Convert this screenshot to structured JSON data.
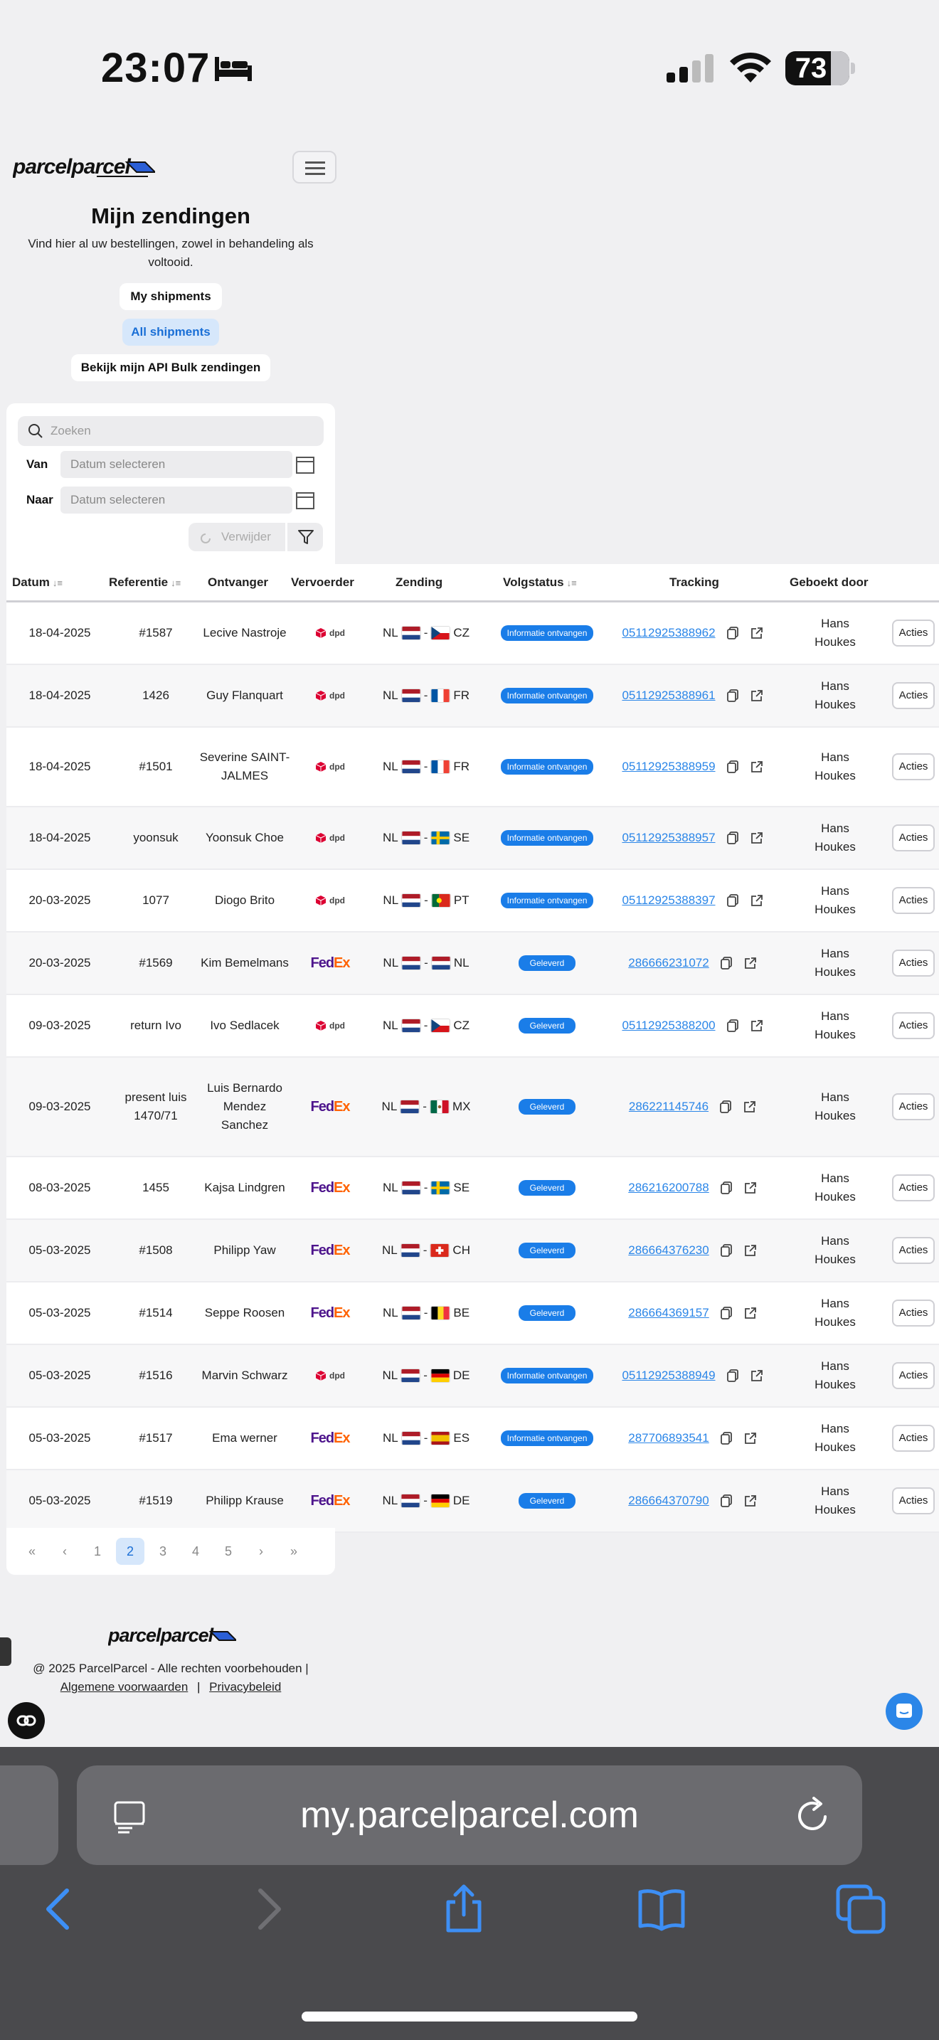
{
  "status_bar": {
    "time": "23:07",
    "battery": "73"
  },
  "brand": {
    "logo": "parcelparcel"
  },
  "header": {
    "title": "Mijn zendingen",
    "subtitle": "Vind hier al uw bestellingen, zowel in behandeling als voltooid."
  },
  "tabs": [
    "My shipments",
    "All shipments",
    "Bekijk mijn API Bulk zendingen"
  ],
  "filters": {
    "search_placeholder": "Zoeken",
    "from_label": "Van",
    "to_label": "Naar",
    "date_placeholder": "Datum selecteren",
    "remove_label": "Verwijder"
  },
  "table": {
    "headers": [
      "Datum",
      "Referentie",
      "Ontvanger",
      "Vervoerder",
      "Zending",
      "Volgstatus",
      "Tracking",
      "Geboekt door"
    ],
    "action_label": "Acties",
    "rows": [
      {
        "date": "18-04-2025",
        "ref": "#1587",
        "recv": "Lecive Nastroje",
        "carrier": "dpd",
        "from": "NL",
        "to": "CZ",
        "status": "Informatie ontvangen",
        "tracking": "05112925388962",
        "by": "Hans Houkes"
      },
      {
        "date": "18-04-2025",
        "ref": "1426",
        "recv": "Guy Flanquart",
        "carrier": "dpd",
        "from": "NL",
        "to": "FR",
        "status": "Informatie ontvangen",
        "tracking": "05112925388961",
        "by": "Hans Houkes"
      },
      {
        "date": "18-04-2025",
        "ref": "#1501",
        "recv": "Severine SAINT-JALMES",
        "carrier": "dpd",
        "from": "NL",
        "to": "FR",
        "status": "Informatie ontvangen",
        "tracking": "05112925388959",
        "by": "Hans Houkes"
      },
      {
        "date": "18-04-2025",
        "ref": "yoonsuk",
        "recv": "Yoonsuk Choe",
        "carrier": "dpd",
        "from": "NL",
        "to": "SE",
        "status": "Informatie ontvangen",
        "tracking": "05112925388957",
        "by": "Hans Houkes"
      },
      {
        "date": "20-03-2025",
        "ref": "1077",
        "recv": "Diogo Brito",
        "carrier": "dpd",
        "from": "NL",
        "to": "PT",
        "status": "Informatie ontvangen",
        "tracking": "05112925388397",
        "by": "Hans Houkes"
      },
      {
        "date": "20-03-2025",
        "ref": "#1569",
        "recv": "Kim Bemelmans",
        "carrier": "FedEx",
        "from": "NL",
        "to": "NL",
        "status": "Geleverd",
        "tracking": "286666231072",
        "by": "Hans Houkes"
      },
      {
        "date": "09-03-2025",
        "ref": "return Ivo",
        "recv": "Ivo Sedlacek",
        "carrier": "dpd",
        "from": "NL",
        "to": "CZ",
        "status": "Geleverd",
        "tracking": "05112925388200",
        "by": "Hans Houkes"
      },
      {
        "date": "09-03-2025",
        "ref": "present luis 1470/71",
        "recv": "Luis Bernardo Mendez Sanchez",
        "carrier": "FedEx",
        "from": "NL",
        "to": "MX",
        "status": "Geleverd",
        "tracking": "286221145746",
        "by": "Hans Houkes"
      },
      {
        "date": "08-03-2025",
        "ref": "1455",
        "recv": "Kajsa Lindgren",
        "carrier": "FedEx",
        "from": "NL",
        "to": "SE",
        "status": "Geleverd",
        "tracking": "286216200788",
        "by": "Hans Houkes"
      },
      {
        "date": "05-03-2025",
        "ref": "#1508",
        "recv": "Philipp Yaw",
        "carrier": "FedEx",
        "from": "NL",
        "to": "CH",
        "status": "Geleverd",
        "tracking": "286664376230",
        "by": "Hans Houkes"
      },
      {
        "date": "05-03-2025",
        "ref": "#1514",
        "recv": "Seppe Roosen",
        "carrier": "FedEx",
        "from": "NL",
        "to": "BE",
        "status": "Geleverd",
        "tracking": "286664369157",
        "by": "Hans Houkes"
      },
      {
        "date": "05-03-2025",
        "ref": "#1516",
        "recv": "Marvin Schwarz",
        "carrier": "dpd",
        "from": "NL",
        "to": "DE",
        "status": "Informatie ontvangen",
        "tracking": "05112925388949",
        "by": "Hans Houkes"
      },
      {
        "date": "05-03-2025",
        "ref": "#1517",
        "recv": "Ema werner",
        "carrier": "FedEx",
        "from": "NL",
        "to": "ES",
        "status": "Informatie ontvangen",
        "tracking": "287706893541",
        "by": "Hans Houkes"
      },
      {
        "date": "05-03-2025",
        "ref": "#1519",
        "recv": "Philipp Krause",
        "carrier": "FedEx",
        "from": "NL",
        "to": "DE",
        "status": "Geleverd",
        "tracking": "286664370790",
        "by": "Hans Houkes"
      }
    ]
  },
  "pagination": {
    "items": [
      "«",
      "‹",
      "1",
      "2",
      "3",
      "4",
      "5",
      "›",
      "»"
    ],
    "active": "2"
  },
  "footer": {
    "copyright": "@ 2025 ParcelParcel - Alle rechten voorbehouden |",
    "terms": "Algemene voorwaarden",
    "separator": "|",
    "privacy": "Privacybeleid"
  },
  "browser": {
    "url": "my.parcelparcel.com"
  },
  "colors": {
    "accent": "#2b86e8",
    "badge": "#1a7de8",
    "fedex_purple": "#4d148c",
    "fedex_orange": "#ff6200",
    "dpd_red": "#dc0032"
  }
}
